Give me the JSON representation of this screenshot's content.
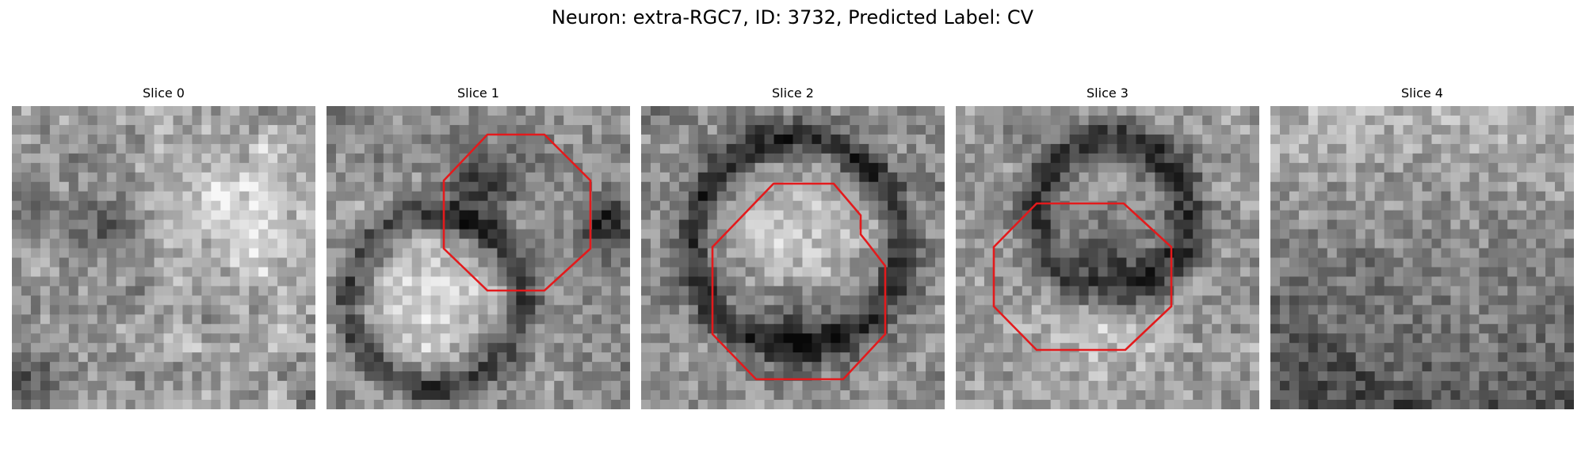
{
  "figure": {
    "title": "Neuron: extra-RGC7, ID: 3732, Predicted Label: CV"
  },
  "panels": [
    {
      "title": "Slice 0",
      "has_contour": false,
      "pattern": "blobby",
      "seed": 7
    },
    {
      "title": "Slice 1",
      "has_contour": true,
      "pattern": "cell-left",
      "seed": 21
    },
    {
      "title": "Slice 2",
      "has_contour": true,
      "pattern": "ring-center",
      "seed": 33
    },
    {
      "title": "Slice 3",
      "has_contour": true,
      "pattern": "dark-band",
      "seed": 45
    },
    {
      "title": "Slice 4",
      "has_contour": false,
      "pattern": "noise-dark-bottom",
      "seed": 59
    }
  ],
  "colors": {
    "contour": "#e31a1c",
    "background": "#ffffff"
  }
}
